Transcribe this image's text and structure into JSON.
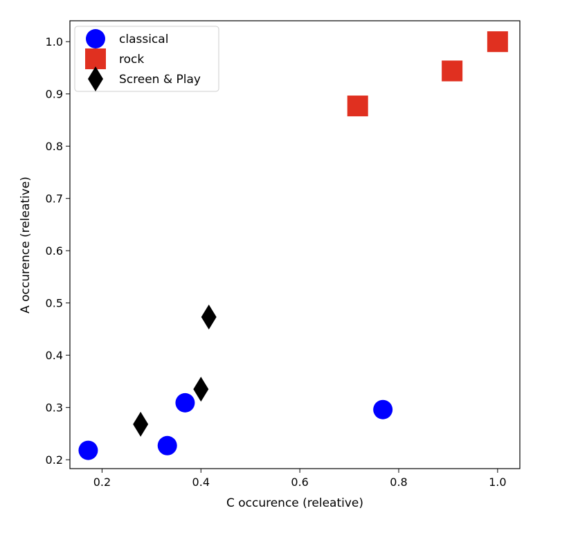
{
  "chart_data": {
    "type": "scatter",
    "title": "",
    "xlabel": "C occurence (releative)",
    "ylabel": "A occurence (releative)",
    "xlim": [
      0.135,
      1.045
    ],
    "ylim": [
      0.183,
      1.04
    ],
    "xticks": [
      0.2,
      0.4,
      0.6,
      0.8,
      1.0
    ],
    "xtick_labels": [
      "0.2",
      "0.4",
      "0.6",
      "0.8",
      "1.0"
    ],
    "yticks": [
      0.2,
      0.3,
      0.4,
      0.5,
      0.6,
      0.7,
      0.8,
      0.9,
      1.0
    ],
    "ytick_labels": [
      "0.2",
      "0.3",
      "0.4",
      "0.5",
      "0.6",
      "0.7",
      "0.8",
      "0.9",
      "1.0"
    ],
    "grid": false,
    "legend_position": "top-left",
    "series": [
      {
        "name": "classical",
        "marker": "circle",
        "color": "#0000ff",
        "points": [
          {
            "x": 0.172,
            "y": 0.218
          },
          {
            "x": 0.332,
            "y": 0.227
          },
          {
            "x": 0.368,
            "y": 0.309
          },
          {
            "x": 0.768,
            "y": 0.296
          }
        ]
      },
      {
        "name": "rock",
        "marker": "square",
        "color": "#e03020",
        "points": [
          {
            "x": 0.717,
            "y": 0.877
          },
          {
            "x": 0.908,
            "y": 0.944
          },
          {
            "x": 1.0,
            "y": 1.0
          }
        ]
      },
      {
        "name": "Screen & Play",
        "marker": "diamond",
        "color": "#000000",
        "points": [
          {
            "x": 0.278,
            "y": 0.268
          },
          {
            "x": 0.4,
            "y": 0.335
          },
          {
            "x": 0.416,
            "y": 0.473
          }
        ]
      }
    ]
  }
}
